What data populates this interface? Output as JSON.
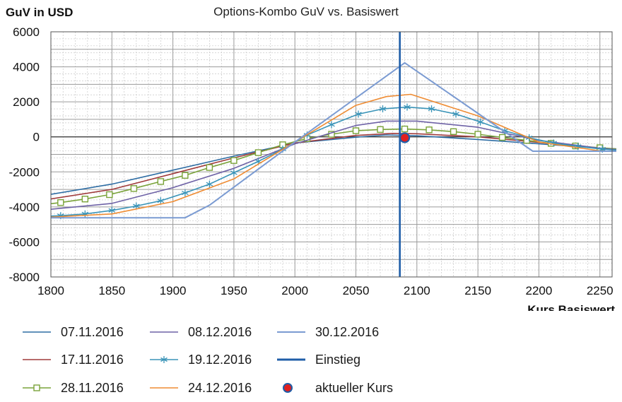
{
  "chart_data": {
    "type": "line",
    "title": "Options-Kombo GuV vs. Basiswert",
    "ylabel": "GuV in USD",
    "xlabel": "Kurs Basiswert",
    "xlim": [
      1800,
      2260
    ],
    "ylim": [
      -8000,
      6000
    ],
    "x_ticks": [
      1800,
      1850,
      1900,
      1950,
      2000,
      2050,
      2100,
      2150,
      2200,
      2250
    ],
    "y_ticks": [
      6000,
      4000,
      2000,
      0,
      -2000,
      -4000,
      -6000,
      -8000
    ],
    "grid": true,
    "legend_position": "bottom",
    "series": [
      {
        "name": "07.11.2016",
        "color": "#2e6da4",
        "marker": "none",
        "x": [
          1790,
          1850,
          1900,
          1950,
          2000,
          2050,
          2075,
          2100,
          2150,
          2200,
          2250,
          2270
        ],
        "y": [
          -3400,
          -2700,
          -1900,
          -1100,
          -350,
          -20,
          110,
          60,
          -150,
          -400,
          -650,
          -700
        ]
      },
      {
        "name": "17.11.2016",
        "color": "#a03c3c",
        "marker": "none",
        "x": [
          1790,
          1850,
          1900,
          1950,
          2000,
          2050,
          2080,
          2100,
          2150,
          2200,
          2250,
          2270
        ],
        "y": [
          -3650,
          -3000,
          -2100,
          -1200,
          -350,
          80,
          200,
          180,
          0,
          -320,
          -650,
          -720
        ]
      },
      {
        "name": "28.11.2016",
        "color": "#7aa33a",
        "marker": "square",
        "x": [
          1790,
          1808,
          1828,
          1848,
          1868,
          1890,
          1910,
          1930,
          1950,
          1970,
          1990,
          2010,
          2030,
          2050,
          2070,
          2090,
          2110,
          2130,
          2150,
          2170,
          2190,
          2210,
          2230,
          2250,
          2270
        ],
        "y": [
          -3900,
          -3750,
          -3550,
          -3300,
          -2950,
          -2550,
          -2200,
          -1750,
          -1350,
          -900,
          -450,
          -100,
          150,
          350,
          420,
          450,
          400,
          300,
          150,
          -30,
          -200,
          -370,
          -520,
          -620,
          -720
        ]
      },
      {
        "name": "08.12.2016",
        "color": "#6e62a6",
        "marker": "none",
        "x": [
          1790,
          1850,
          1900,
          1950,
          2000,
          2050,
          2075,
          2100,
          2150,
          2200,
          2250,
          2270
        ],
        "y": [
          -4200,
          -3800,
          -2900,
          -1800,
          -400,
          650,
          900,
          900,
          550,
          -200,
          -650,
          -760
        ]
      },
      {
        "name": "19.12.2016",
        "color": "#3a94b8",
        "marker": "star",
        "x": [
          1790,
          1808,
          1828,
          1850,
          1870,
          1890,
          1910,
          1930,
          1950,
          1970,
          1990,
          2010,
          2030,
          2052,
          2072,
          2092,
          2112,
          2132,
          2152,
          2172,
          2192,
          2212,
          2232,
          2252,
          2272
        ],
        "y": [
          -4550,
          -4500,
          -4400,
          -4200,
          -3950,
          -3650,
          -3200,
          -2700,
          -2050,
          -1400,
          -700,
          100,
          700,
          1300,
          1600,
          1700,
          1600,
          1300,
          850,
          350,
          -50,
          -350,
          -550,
          -700,
          -800
        ]
      },
      {
        "name": "24.12.2016",
        "color": "#ef8c33",
        "marker": "none",
        "x": [
          1790,
          1850,
          1900,
          1950,
          2000,
          2050,
          2075,
          2095,
          2150,
          2200,
          2250,
          2270
        ],
        "y": [
          -4620,
          -4400,
          -3700,
          -2400,
          -300,
          1800,
          2300,
          2430,
          1200,
          -300,
          -800,
          -850
        ]
      },
      {
        "name": "30.12.2016",
        "color": "#7b9bd2",
        "marker": "none",
        "x": [
          1790,
          1910,
          1930,
          2000,
          2090,
          2195,
          2270
        ],
        "y": [
          -4620,
          -4620,
          -3900,
          -300,
          4230,
          -820,
          -820
        ]
      }
    ],
    "entry": {
      "name": "Einstieg",
      "x": 2086,
      "color": "#1f5ea8"
    },
    "current": {
      "name": "aktueller Kurs",
      "x": 2090,
      "y": -50,
      "fill": "#e02020",
      "ring": "#1f5ea8"
    }
  },
  "legend_items": [
    {
      "label": "07.11.2016"
    },
    {
      "label": "08.12.2016"
    },
    {
      "label": "30.12.2016"
    },
    {
      "label": "17.11.2016"
    },
    {
      "label": "19.12.2016"
    },
    {
      "label": "Einstieg"
    },
    {
      "label": "28.11.2016"
    },
    {
      "label": "24.12.2016"
    },
    {
      "label": "aktueller Kurs"
    }
  ]
}
